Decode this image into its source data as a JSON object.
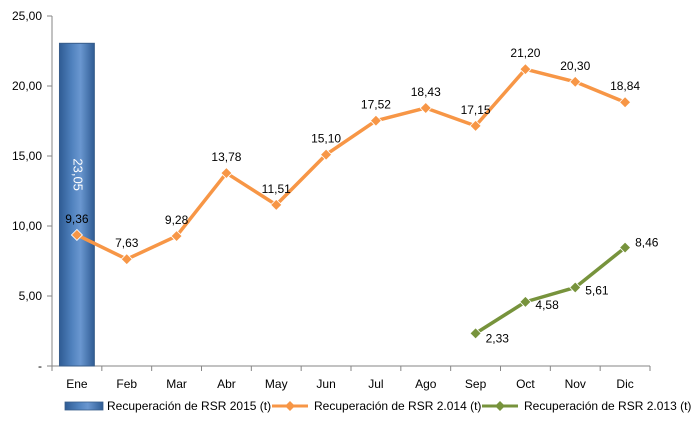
{
  "chart_data": {
    "type": "bar+line",
    "title": "",
    "xlabel": "",
    "ylabel": "",
    "ylim": [
      0,
      25
    ],
    "y_ticks": [
      "-",
      "5,00",
      "10,00",
      "15,00",
      "20,00",
      "25,00"
    ],
    "y_tick_values": [
      0,
      5,
      10,
      15,
      20,
      25
    ],
    "categories": [
      "Ene",
      "Feb",
      "Mar",
      "Abr",
      "May",
      "Jun",
      "Jul",
      "Ago",
      "Sep",
      "Oct",
      "Nov",
      "Dic"
    ],
    "grid": false,
    "legend_position": "bottom",
    "series": [
      {
        "name": "Recuperación de RSR 2015 (t)",
        "kind": "bar",
        "color": "#4F81BD",
        "values": [
          23.05,
          null,
          null,
          null,
          null,
          null,
          null,
          null,
          null,
          null,
          null,
          null
        ],
        "labels": [
          "23,05",
          "",
          "",
          "",
          "",
          "",
          "",
          "",
          "",
          "",
          "",
          ""
        ]
      },
      {
        "name": "Recuperación de RSR 2.014 (t)",
        "kind": "line",
        "color": "#F79646",
        "marker": "diamond",
        "values": [
          9.36,
          7.63,
          9.28,
          13.78,
          11.51,
          15.1,
          17.52,
          18.43,
          17.15,
          21.2,
          20.3,
          18.84
        ],
        "labels": [
          "9,36",
          "7,63",
          "9,28",
          "13,78",
          "11,51",
          "15,10",
          "17,52",
          "18,43",
          "17,15",
          "21,20",
          "20,30",
          "18,84"
        ]
      },
      {
        "name": "Recuperación de RSR 2.013 (t)",
        "kind": "line",
        "color": "#77933C",
        "marker": "diamond",
        "values": [
          null,
          null,
          null,
          null,
          null,
          null,
          null,
          null,
          2.33,
          4.58,
          5.61,
          8.46
        ],
        "labels": [
          "",
          "",
          "",
          "",
          "",
          "",
          "",
          "",
          "2,33",
          "4,58",
          "5,61",
          "8,46"
        ]
      }
    ]
  }
}
